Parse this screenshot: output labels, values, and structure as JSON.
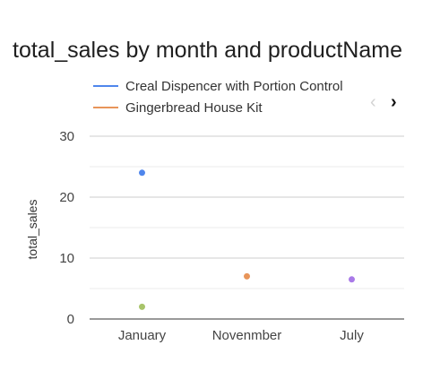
{
  "chart_data": {
    "type": "scatter",
    "title": "total_sales by month and productName",
    "xlabel": "",
    "ylabel": "total_sales",
    "categories": [
      "January",
      "Novenmber",
      "July"
    ],
    "ylim": [
      0,
      30
    ],
    "yticks": [
      0,
      10,
      20,
      30
    ],
    "grid": true,
    "legend_position": "top",
    "series": [
      {
        "name": "Creal Dispencer with Portion Control",
        "color": "#4f86ec",
        "points": [
          {
            "x": "January",
            "y": 24
          }
        ]
      },
      {
        "name": "Gingerbread House Kit",
        "color": "#e8955a",
        "points": [
          {
            "x": "Novenmber",
            "y": 7
          }
        ]
      },
      {
        "name": "",
        "color": "#a97ae8",
        "points": [
          {
            "x": "July",
            "y": 6.5
          }
        ]
      },
      {
        "name": "",
        "color": "#a8c46a",
        "points": [
          {
            "x": "January",
            "y": 2
          }
        ]
      }
    ]
  },
  "legend": {
    "prev_icon": "‹",
    "next_icon": "›"
  }
}
